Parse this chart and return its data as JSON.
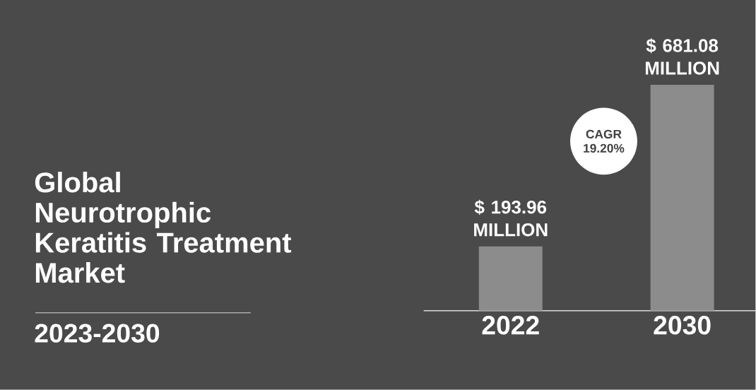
{
  "chart_data": {
    "type": "bar",
    "title": "Global Neurotrophic Keratitis Treatment Market",
    "subtitle": "2023-2030",
    "categories": [
      "2022",
      "2030"
    ],
    "values": [
      193.96,
      681.08
    ],
    "value_labels": [
      "$ 193.96 MILLION",
      "$ 681.08 MILLION"
    ],
    "color": "#8c8c8c",
    "annotations": [
      "CAGR 19.20%"
    ]
  }
}
